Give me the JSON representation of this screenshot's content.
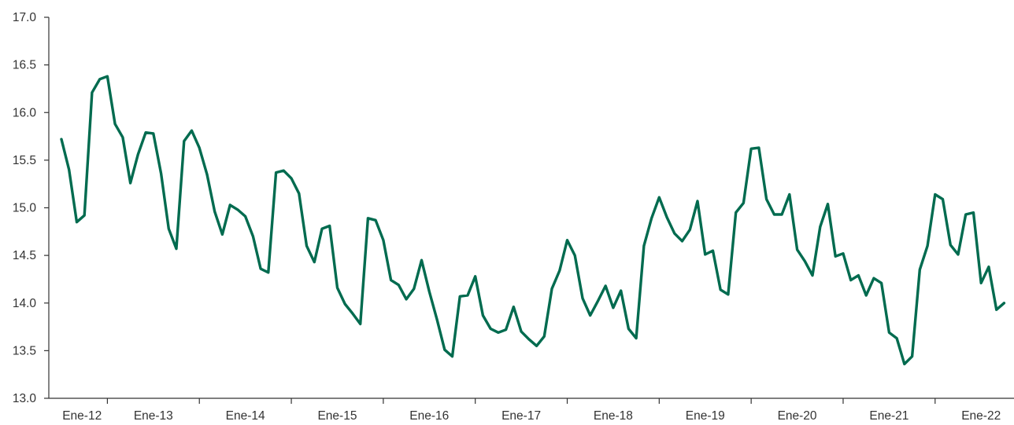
{
  "chart_data": {
    "type": "line",
    "title": "",
    "xlabel": "",
    "ylabel": "",
    "ylim": [
      13.0,
      17.0
    ],
    "yticks": [
      "13.0",
      "13.5",
      "14.0",
      "14.5",
      "15.0",
      "15.5",
      "16.0",
      "16.5",
      "17.0"
    ],
    "xtick_labels": [
      "Ene-12",
      "Ene-13",
      "Ene-14",
      "Ene-15",
      "Ene-16",
      "Ene-17",
      "Ene-18",
      "Ene-19",
      "Ene-20",
      "Ene-21",
      "Ene-22"
    ],
    "grid": false,
    "legend": "none",
    "series_color": "#006B4F",
    "axis_color": "#333333",
    "series": [
      {
        "values": [
          15.72,
          15.4,
          14.85,
          14.92,
          16.21,
          16.35,
          16.38,
          15.88,
          15.74,
          15.26,
          15.56,
          15.79,
          15.78,
          15.36,
          14.78,
          14.57,
          15.7,
          15.81,
          15.63,
          15.35,
          14.96,
          14.72,
          15.03,
          14.98,
          14.91,
          14.7,
          14.36,
          14.32,
          15.37,
          15.39,
          15.31,
          15.15,
          14.6,
          14.43,
          14.78,
          14.81,
          14.16,
          13.99,
          13.89,
          13.78,
          14.89,
          14.87,
          14.66,
          14.24,
          14.19,
          14.04,
          14.15,
          14.45,
          14.12,
          13.83,
          13.51,
          13.44,
          14.07,
          14.08,
          14.28,
          13.87,
          13.73,
          13.69,
          13.72,
          13.96,
          13.7,
          13.62,
          13.55,
          13.65,
          14.15,
          14.34,
          14.66,
          14.5,
          14.05,
          13.87,
          14.02,
          14.18,
          13.95,
          14.13,
          13.73,
          13.63,
          14.6,
          14.89,
          15.11,
          14.9,
          14.73,
          14.65,
          14.77,
          15.07,
          14.51,
          14.55,
          14.14,
          14.09,
          14.95,
          15.05,
          15.62,
          15.63,
          15.09,
          14.93,
          14.93,
          15.14,
          14.56,
          14.44,
          14.29,
          14.8,
          15.04,
          14.49,
          14.52,
          14.24,
          14.29,
          14.08,
          14.26,
          14.21,
          13.69,
          13.63,
          13.36,
          13.44,
          14.35,
          14.6,
          15.14,
          15.09,
          14.61,
          14.51,
          14.93,
          14.95,
          14.21,
          14.38,
          13.93,
          14.0
        ]
      }
    ]
  }
}
